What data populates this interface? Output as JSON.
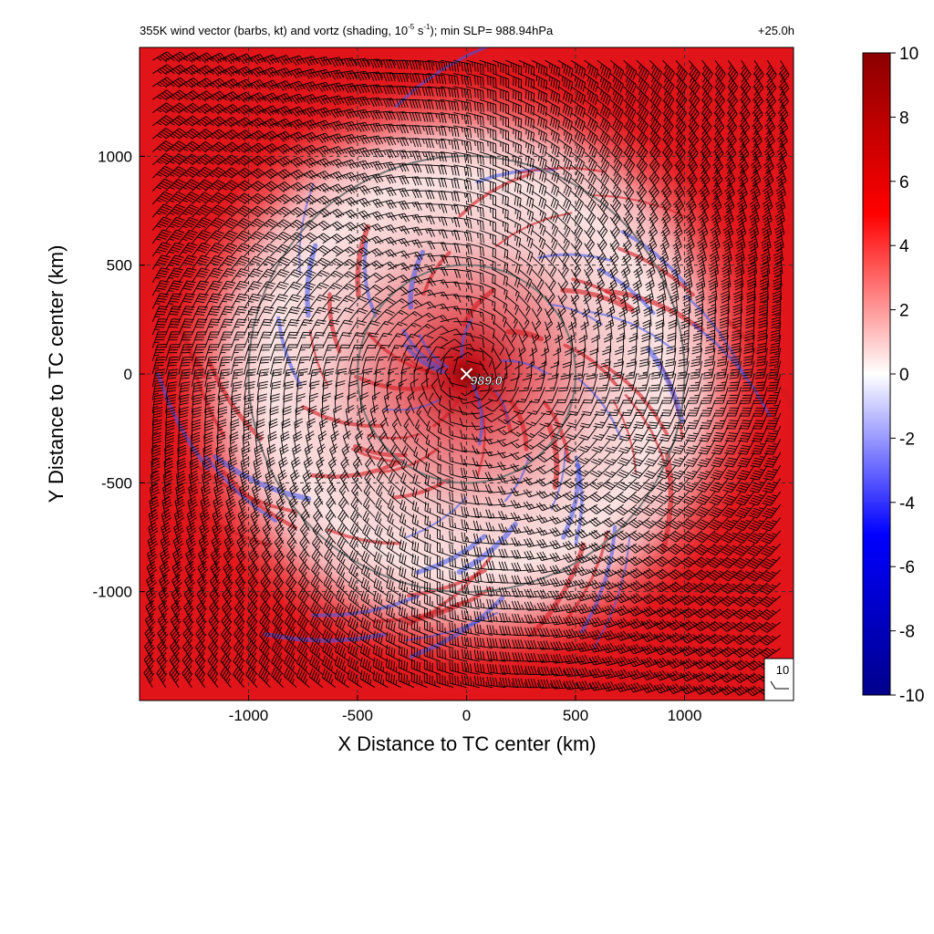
{
  "chart_data": {
    "type": "heatmap",
    "title": {
      "part1": "355K wind vector (barbs, kt) and vortz (shading, 10",
      "exp1": "-5",
      "part2": " s",
      "exp2": "-1",
      "part3": "); min SLP= 988.94hPa"
    },
    "valid_time": "+25.0h",
    "xlabel": "X Distance to TC center (km)",
    "ylabel": "Y Distance to TC center (km)",
    "xlim": [
      -1500,
      1500
    ],
    "ylim": [
      -1500,
      1500
    ],
    "xticks": [
      -1000,
      -500,
      0,
      500,
      1000
    ],
    "yticks": [
      -1000,
      -500,
      0,
      500,
      1000
    ],
    "grid": true,
    "grid_style": "dashed",
    "range_rings_km": [
      500,
      1000
    ],
    "center_marker": {
      "x": 0,
      "y": 0,
      "symbol": "x",
      "label": "989.0"
    },
    "barb_reference": {
      "label": "10",
      "units": "kt"
    },
    "colorbar": {
      "min": -10,
      "max": 10,
      "ticks": [
        10,
        8,
        6,
        4,
        2,
        0,
        -2,
        -4,
        -6,
        -8,
        -10
      ],
      "colors": [
        "#00008b",
        "#0000ff",
        "#ffffff",
        "#ff0000",
        "#8b0000"
      ]
    },
    "vorticity_field": {
      "description_units": "1e-5 s^-1",
      "outer_ring_value": 7,
      "inner_ring_value": 2.5,
      "core_value": 10,
      "negative_minimum": -6
    }
  }
}
